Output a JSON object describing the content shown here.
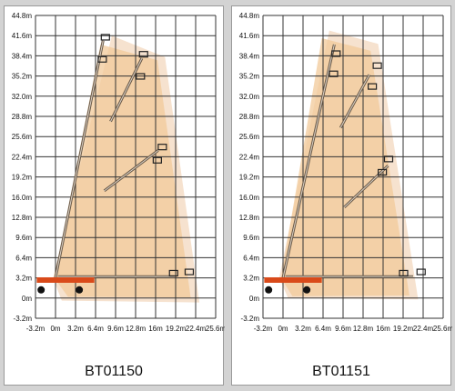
{
  "charts": [
    {
      "model": "BT01150",
      "y_ticks": [
        "44.8m",
        "41.6m",
        "38.4m",
        "35.2m",
        "32.0m",
        "28.8m",
        "25.6m",
        "22.4m",
        "19.2m",
        "16.0m",
        "12.8m",
        "9.6m",
        "6.4m",
        "3.2m",
        "0m",
        "-3.2m"
      ],
      "x_ticks": [
        "-3.2m",
        "0m",
        "3.2m",
        "6.4m",
        "9.6m",
        "12.8m",
        "16m",
        "19.2m",
        "22.4m",
        "25.6m"
      ]
    },
    {
      "model": "BT01151",
      "y_ticks": [
        "44.8m",
        "41.6m",
        "38.4m",
        "35.2m",
        "32.0m",
        "28.8m",
        "25.6m",
        "22.4m",
        "19.2m",
        "16.0m",
        "12.8m",
        "9.6m",
        "6.4m",
        "3.2m",
        "0m",
        "-3.2m"
      ],
      "x_ticks": [
        "-3.2m",
        "0m",
        "3.2m",
        "6.4m",
        "9.6m",
        "12.8m",
        "16m",
        "19.2m",
        "22.4m",
        "25.6m"
      ]
    }
  ],
  "colors": {
    "panel_bg": "#ffffff",
    "page_bg": "#d3d3d3",
    "grid": "#333333",
    "envelope_outer": "#f6e2cf",
    "envelope_inner": "#f1c99a",
    "chassis": "#d94a1a",
    "boom": "#6b5a48"
  }
}
